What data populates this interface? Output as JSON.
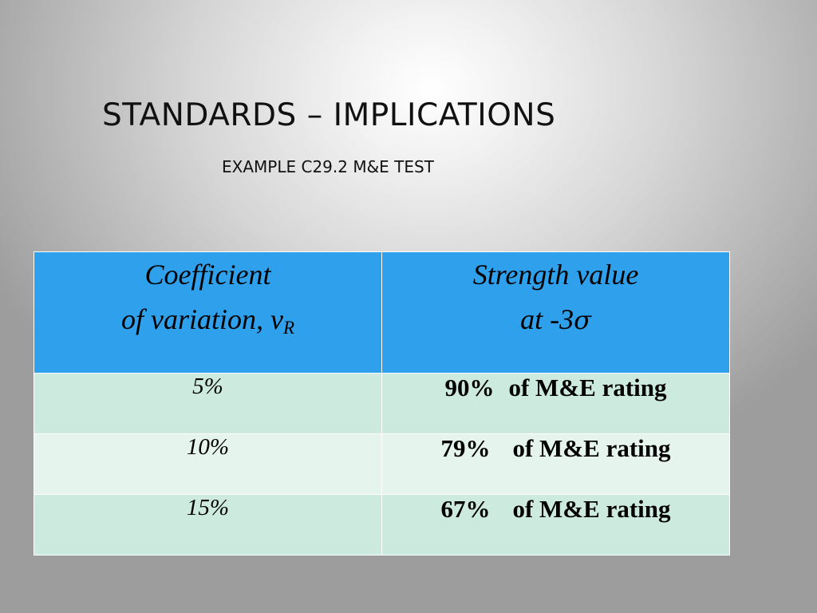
{
  "slide": {
    "title": "STANDARDS – IMPLICATIONS",
    "subtitle": "EXAMPLE C29.2 M&E TEST"
  },
  "table": {
    "header": {
      "col1_line1": "Coefficient",
      "col1_line2": "of variation, v",
      "col1_sub": "R",
      "col2_line1": "Strength value",
      "col2_line2": "at -3",
      "col2_symbol": "σ"
    },
    "rows": [
      {
        "cov": "5%",
        "pct": "90%",
        "text": "of M&E rating"
      },
      {
        "cov": "10%",
        "pct": "79%",
        "text": "of M&E rating"
      },
      {
        "cov": "15%",
        "pct": "67%",
        "text": "of M&E rating"
      }
    ],
    "colors": {
      "header_bg": "#2ea0ec",
      "row_odd_bg": "#cdeadf",
      "row_even_bg": "#e6f4ee"
    }
  }
}
